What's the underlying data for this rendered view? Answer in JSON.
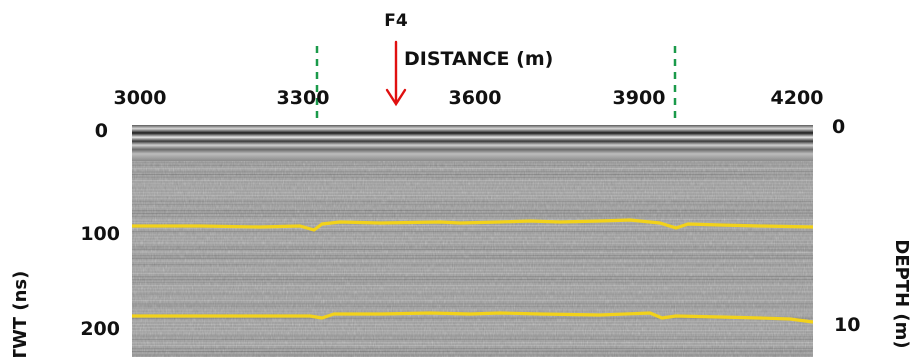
{
  "figure": {
    "marker_label": "F4",
    "x_axis_title": "DISTANCE (m)",
    "x_ticks": [
      "3000",
      "3300",
      "3600",
      "3900",
      "4200"
    ],
    "left_axis_title": "TWT (ns)",
    "left_ticks": [
      "0",
      "100",
      "200"
    ],
    "right_axis_title": "DEPTH (m)",
    "right_ticks": [
      "0",
      "10"
    ],
    "colors": {
      "marker": "#e01010",
      "boundary_lines": "#1a9a4a",
      "reflectors": "#f2d21a",
      "radargram_background": "#9c9c9c"
    }
  }
}
